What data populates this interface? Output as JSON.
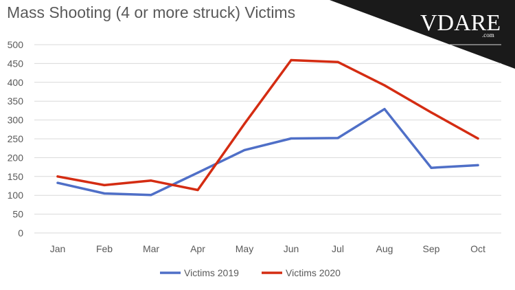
{
  "chart_data": {
    "type": "line",
    "title": "Mass Shooting (4 or more struck) Victims",
    "xlabel": "",
    "ylabel": "",
    "categories": [
      "Jan",
      "Feb",
      "Mar",
      "Apr",
      "May",
      "Jun",
      "Jul",
      "Aug",
      "Sep",
      "Oct"
    ],
    "series": [
      {
        "name": "Victims 2019",
        "color": "#4f6fc7",
        "values": [
          133,
          105,
          101,
          160,
          220,
          251,
          252,
          329,
          173,
          180
        ]
      },
      {
        "name": "Victims 2020",
        "color": "#d42c12",
        "values": [
          150,
          127,
          139,
          114,
          290,
          459,
          454,
          392,
          320,
          251
        ]
      }
    ],
    "ylim": [
      0,
      500
    ],
    "yticks": [
      0,
      50,
      100,
      150,
      200,
      250,
      300,
      350,
      400,
      450,
      500
    ],
    "grid": true,
    "legend_position": "bottom"
  },
  "brand": {
    "logo_text": "VDARE",
    "domain_text": ".com",
    "banner_color": "#1a1a1a"
  }
}
